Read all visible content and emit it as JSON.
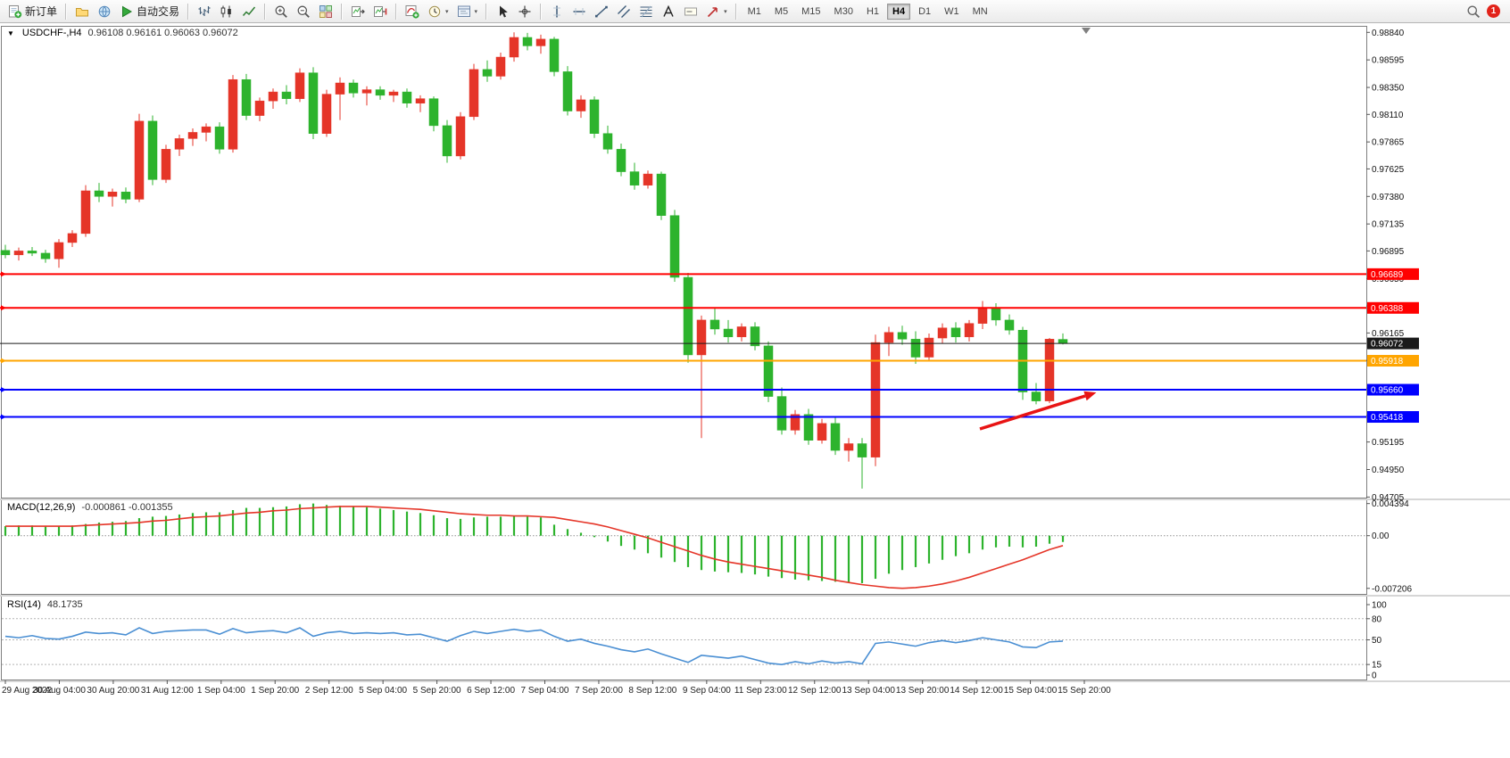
{
  "toolbar": {
    "groups": [
      {
        "items": [
          {
            "name": "new-order",
            "icon": "new-order",
            "label": "新订单"
          }
        ]
      },
      {
        "items": [
          {
            "name": "charts-profile",
            "icon": "folder"
          },
          {
            "name": "market-watch",
            "icon": "globe"
          },
          {
            "name": "auto-trading",
            "icon": "play",
            "label": "自动交易"
          }
        ]
      },
      {
        "items": [
          {
            "name": "bar-chart-mode",
            "icon": "bars"
          },
          {
            "name": "candlestick-mode",
            "icon": "candles"
          },
          {
            "name": "line-chart-mode",
            "icon": "linechart"
          }
        ]
      },
      {
        "items": [
          {
            "name": "zoom-in",
            "icon": "zoom-in"
          },
          {
            "name": "zoom-out",
            "icon": "zoom-out"
          },
          {
            "name": "tile-windows",
            "icon": "tiles"
          }
        ]
      },
      {
        "items": [
          {
            "name": "chart-autoscroll",
            "icon": "autoscroll"
          },
          {
            "name": "chart-shift",
            "icon": "shift"
          }
        ]
      },
      {
        "items": [
          {
            "name": "indicators-list",
            "icon": "indicators"
          },
          {
            "name": "periods",
            "icon": "clock",
            "dropdown": true
          },
          {
            "name": "templates",
            "icon": "template",
            "dropdown": true
          }
        ]
      },
      {
        "items": [
          {
            "name": "cursor",
            "icon": "cursor"
          },
          {
            "name": "crosshair",
            "icon": "crosshair"
          }
        ]
      },
      {
        "items": [
          {
            "name": "vertical-line",
            "icon": "vline"
          },
          {
            "name": "horizontal-line",
            "icon": "hline"
          },
          {
            "name": "trendline",
            "icon": "trend"
          },
          {
            "name": "equidistant-channel",
            "icon": "channel"
          },
          {
            "name": "fibonacci-retracement",
            "icon": "fibo"
          },
          {
            "name": "text",
            "icon": "text-a"
          },
          {
            "name": "text-label",
            "icon": "label"
          },
          {
            "name": "arrows",
            "icon": "arrow-obj",
            "dropdown": true
          }
        ]
      },
      {
        "timeframes": [
          "M1",
          "M5",
          "M15",
          "M30",
          "H1",
          "H4",
          "D1",
          "W1",
          "MN"
        ],
        "active": "H4"
      }
    ],
    "right": [
      {
        "name": "search",
        "icon": "magnifier"
      },
      {
        "name": "notifications",
        "badge": "1"
      }
    ]
  },
  "chart_header": {
    "oneclick_arrow": "▼",
    "symbol_period": "USDCHF-,H4",
    "ohlc": "0.96108 0.96161 0.96063 0.96072"
  },
  "indicators": {
    "macd": {
      "label": "MACD(12,26,9)",
      "values": "-0.000861 -0.001355"
    },
    "rsi": {
      "label": "RSI(14)",
      "value": "48.1735"
    }
  },
  "chart_data": {
    "type": "candlestick",
    "symbol": "USDCHF",
    "period": "H4",
    "price_range": [
      0.947,
      0.9889
    ],
    "colors": {
      "up": "#e53528",
      "down": "#2db32d",
      "macd_hist": "#2db32d",
      "macd_signal": "#e53528",
      "rsi": "#4a8fd3"
    },
    "price_scale_labels": [
      "0.98840",
      "0.98595",
      "0.98350",
      "0.98110",
      "0.97865",
      "0.97625",
      "0.97380",
      "0.97135",
      "0.96895",
      "0.96650",
      "0.96405",
      "0.96165",
      "0.95920",
      "0.95675",
      "0.95430",
      "0.95195",
      "0.94950",
      "0.94705"
    ],
    "time_labels": [
      "29 Aug 2022",
      "30 Aug 04:00",
      "30 Aug 20:00",
      "31 Aug 12:00",
      "1 Sep 04:00",
      "1 Sep 20:00",
      "2 Sep 12:00",
      "5 Sep 04:00",
      "5 Sep 20:00",
      "6 Sep 12:00",
      "7 Sep 04:00",
      "7 Sep 20:00",
      "8 Sep 12:00",
      "9 Sep 04:00",
      "11 Sep 23:00",
      "12 Sep 12:00",
      "13 Sep 04:00",
      "13 Sep 20:00",
      "14 Sep 12:00",
      "15 Sep 04:00",
      "15 Sep 20:00"
    ],
    "levels": [
      {
        "price": "0.96689",
        "value": 0.96689,
        "color": "#ff0000",
        "kind": "resistance"
      },
      {
        "price": "0.96388",
        "value": 0.96388,
        "color": "#ff0000",
        "kind": "resistance"
      },
      {
        "price": "0.96072",
        "value": 0.96072,
        "color": "#1a1a1a",
        "kind": "current"
      },
      {
        "price": "0.95918",
        "value": 0.95918,
        "color": "#ffa500",
        "kind": "support"
      },
      {
        "price": "0.95660",
        "value": 0.9566,
        "color": "#0000ff",
        "kind": "support"
      },
      {
        "price": "0.95418",
        "value": 0.95418,
        "color": "#0000ff",
        "kind": "support"
      }
    ],
    "candles": [
      [
        0.969,
        0.9695,
        0.9683,
        0.9686
      ],
      [
        0.9686,
        0.96925,
        0.9681,
        0.96895
      ],
      [
        0.96895,
        0.9693,
        0.9685,
        0.96875
      ],
      [
        0.96875,
        0.96905,
        0.9679,
        0.96825
      ],
      [
        0.96825,
        0.97,
        0.96745,
        0.9697
      ],
      [
        0.9697,
        0.9708,
        0.9693,
        0.9705
      ],
      [
        0.9705,
        0.9748,
        0.9702,
        0.9743
      ],
      [
        0.9743,
        0.975,
        0.9733,
        0.9738
      ],
      [
        0.9738,
        0.9745,
        0.9729,
        0.9742
      ],
      [
        0.9742,
        0.9746,
        0.9732,
        0.97355
      ],
      [
        0.97355,
        0.98115,
        0.9733,
        0.9805
      ],
      [
        0.9805,
        0.981,
        0.9748,
        0.9753
      ],
      [
        0.9753,
        0.9784,
        0.975,
        0.978
      ],
      [
        0.978,
        0.9793,
        0.9774,
        0.97895
      ],
      [
        0.97895,
        0.97985,
        0.9783,
        0.9795
      ],
      [
        0.9795,
        0.9803,
        0.9787,
        0.98
      ],
      [
        0.98,
        0.9804,
        0.9776,
        0.978
      ],
      [
        0.978,
        0.9846,
        0.9777,
        0.9842
      ],
      [
        0.9842,
        0.9847,
        0.9806,
        0.981
      ],
      [
        0.981,
        0.9826,
        0.9805,
        0.9823
      ],
      [
        0.9823,
        0.9834,
        0.9816,
        0.9831
      ],
      [
        0.9831,
        0.9837,
        0.982,
        0.9825
      ],
      [
        0.9825,
        0.9852,
        0.9822,
        0.9848
      ],
      [
        0.9848,
        0.9853,
        0.9789,
        0.9794
      ],
      [
        0.9794,
        0.9833,
        0.9791,
        0.9829
      ],
      [
        0.9829,
        0.9844,
        0.9806,
        0.9839
      ],
      [
        0.9839,
        0.9842,
        0.9826,
        0.983
      ],
      [
        0.983,
        0.9836,
        0.9819,
        0.9833
      ],
      [
        0.9833,
        0.9836,
        0.9824,
        0.9828
      ],
      [
        0.9828,
        0.9833,
        0.9822,
        0.9831
      ],
      [
        0.9831,
        0.9834,
        0.9817,
        0.9821
      ],
      [
        0.9821,
        0.9828,
        0.9813,
        0.9825
      ],
      [
        0.9825,
        0.9827,
        0.9796,
        0.9801
      ],
      [
        0.9801,
        0.9806,
        0.9768,
        0.9774
      ],
      [
        0.9774,
        0.9813,
        0.9771,
        0.9809
      ],
      [
        0.9809,
        0.9856,
        0.9806,
        0.9851
      ],
      [
        0.9851,
        0.9859,
        0.984,
        0.9845
      ],
      [
        0.9845,
        0.9866,
        0.9842,
        0.9862
      ],
      [
        0.9862,
        0.9884,
        0.9858,
        0.98795
      ],
      [
        0.98795,
        0.98835,
        0.9868,
        0.9872
      ],
      [
        0.9872,
        0.9882,
        0.9865,
        0.9878
      ],
      [
        0.9878,
        0.988,
        0.9845,
        0.9849
      ],
      [
        0.9849,
        0.9854,
        0.981,
        0.9814
      ],
      [
        0.9814,
        0.9828,
        0.9808,
        0.9824
      ],
      [
        0.9824,
        0.9827,
        0.979,
        0.9794
      ],
      [
        0.9794,
        0.9801,
        0.9776,
        0.978
      ],
      [
        0.978,
        0.9785,
        0.9756,
        0.976
      ],
      [
        0.976,
        0.9768,
        0.9744,
        0.9748
      ],
      [
        0.9748,
        0.9761,
        0.9745,
        0.9758
      ],
      [
        0.9758,
        0.976,
        0.9717,
        0.9721
      ],
      [
        0.9721,
        0.9726,
        0.9662,
        0.9666
      ],
      [
        0.9666,
        0.967,
        0.959,
        0.9597
      ],
      [
        0.9597,
        0.9632,
        0.9523,
        0.9628
      ],
      [
        0.9628,
        0.9639,
        0.9615,
        0.962
      ],
      [
        0.962,
        0.9628,
        0.9608,
        0.9613
      ],
      [
        0.9613,
        0.9625,
        0.9609,
        0.9622
      ],
      [
        0.9622,
        0.9626,
        0.9601,
        0.9605
      ],
      [
        0.9605,
        0.9609,
        0.9555,
        0.956
      ],
      [
        0.956,
        0.9568,
        0.9526,
        0.953
      ],
      [
        0.953,
        0.9548,
        0.9526,
        0.9544
      ],
      [
        0.9544,
        0.9549,
        0.9517,
        0.9521
      ],
      [
        0.9521,
        0.954,
        0.9518,
        0.9536
      ],
      [
        0.9536,
        0.9541,
        0.9508,
        0.9512
      ],
      [
        0.9512,
        0.9523,
        0.9502,
        0.9518
      ],
      [
        0.9518,
        0.9523,
        0.9478,
        0.9506
      ],
      [
        0.9506,
        0.9615,
        0.9498,
        0.9608
      ],
      [
        0.9608,
        0.9622,
        0.9596,
        0.9617
      ],
      [
        0.9617,
        0.9623,
        0.9606,
        0.9611
      ],
      [
        0.9611,
        0.9618,
        0.9589,
        0.9595
      ],
      [
        0.9595,
        0.9616,
        0.9591,
        0.9612
      ],
      [
        0.9612,
        0.9625,
        0.9607,
        0.9621
      ],
      [
        0.9621,
        0.9626,
        0.9608,
        0.9613
      ],
      [
        0.9613,
        0.9628,
        0.9609,
        0.9625
      ],
      [
        0.9625,
        0.9645,
        0.962,
        0.9639
      ],
      [
        0.9639,
        0.9643,
        0.9623,
        0.9628
      ],
      [
        0.9628,
        0.9633,
        0.9615,
        0.9619
      ],
      [
        0.9619,
        0.9622,
        0.9557,
        0.9564
      ],
      [
        0.9564,
        0.9572,
        0.9553,
        0.9556
      ],
      [
        0.9556,
        0.9612,
        0.9554,
        0.9611
      ],
      [
        0.96108,
        0.96161,
        0.96063,
        0.96072
      ]
    ],
    "macd": {
      "scale_labels": [
        "0.004394",
        "0.00",
        "-0.007206"
      ],
      "scale_values": [
        0.004394,
        0,
        -0.007206
      ],
      "histogram": [
        0.0013,
        0.0014,
        0.0014,
        0.0013,
        0.0013,
        0.0014,
        0.0016,
        0.0018,
        0.0019,
        0.002,
        0.0024,
        0.0026,
        0.0027,
        0.0029,
        0.0031,
        0.0032,
        0.0032,
        0.0035,
        0.0038,
        0.0038,
        0.0039,
        0.004,
        0.0043,
        0.0044,
        0.0042,
        0.0041,
        0.004,
        0.0039,
        0.0037,
        0.0035,
        0.0033,
        0.0031,
        0.0028,
        0.0024,
        0.0023,
        0.0025,
        0.0026,
        0.0026,
        0.0027,
        0.0026,
        0.0025,
        0.0015,
        0.0009,
        0.0004,
        -0.0002,
        -0.0008,
        -0.0014,
        -0.0019,
        -0.0024,
        -0.003,
        -0.0036,
        -0.0043,
        -0.0047,
        -0.0049,
        -0.005,
        -0.0051,
        -0.0053,
        -0.0056,
        -0.0058,
        -0.006,
        -0.0061,
        -0.0062,
        -0.0063,
        -0.0064,
        -0.0065,
        -0.0059,
        -0.0052,
        -0.0047,
        -0.0043,
        -0.0038,
        -0.0033,
        -0.0028,
        -0.0024,
        -0.0019,
        -0.0016,
        -0.0015,
        -0.0016,
        -0.0015,
        -0.0011,
        -0.000861
      ],
      "signal": [
        0.0013,
        0.0013,
        0.0013,
        0.0013,
        0.0013,
        0.0013,
        0.0014,
        0.0015,
        0.0016,
        0.0017,
        0.0018,
        0.002,
        0.0021,
        0.0023,
        0.0025,
        0.0026,
        0.0027,
        0.0029,
        0.0031,
        0.0032,
        0.0034,
        0.0035,
        0.0037,
        0.0038,
        0.0039,
        0.004,
        0.004,
        0.004,
        0.0039,
        0.0038,
        0.0037,
        0.0036,
        0.0034,
        0.0032,
        0.003,
        0.0029,
        0.0028,
        0.0028,
        0.0027,
        0.0027,
        0.0026,
        0.0025,
        0.0022,
        0.0019,
        0.0016,
        0.0012,
        0.0007,
        0.0002,
        -0.0003,
        -0.0009,
        -0.0015,
        -0.0021,
        -0.0027,
        -0.0032,
        -0.0036,
        -0.0039,
        -0.0042,
        -0.0045,
        -0.0048,
        -0.0051,
        -0.0054,
        -0.0057,
        -0.0061,
        -0.0064,
        -0.0067,
        -0.0069,
        -0.0071,
        -0.0072,
        -0.0071,
        -0.0069,
        -0.0066,
        -0.0062,
        -0.0057,
        -0.0051,
        -0.0045,
        -0.0039,
        -0.0033,
        -0.0026,
        -0.0019,
        -0.001355
      ]
    },
    "rsi": {
      "scale_labels": [
        "100",
        "80",
        "50",
        "15",
        "0"
      ],
      "scale_values": [
        100,
        80,
        50,
        15,
        0
      ],
      "levels": [
        80,
        50,
        15
      ],
      "series": [
        55,
        53,
        56,
        52,
        51,
        55,
        61,
        59,
        60,
        57,
        67,
        59,
        62,
        63,
        64,
        64,
        58,
        66,
        60,
        62,
        63,
        60,
        67,
        55,
        60,
        62,
        59,
        60,
        59,
        60,
        57,
        58,
        53,
        48,
        56,
        62,
        59,
        62,
        65,
        62,
        64,
        55,
        48,
        51,
        45,
        41,
        36,
        33,
        37,
        30,
        24,
        18,
        28,
        26,
        24,
        27,
        22,
        17,
        15,
        19,
        16,
        20,
        17,
        19,
        16,
        45,
        47,
        44,
        41,
        46,
        49,
        46,
        49,
        53,
        50,
        47,
        40,
        39,
        47,
        48.17
      ]
    },
    "annotation_arrow": {
      "from": [
        1098,
        455
      ],
      "to": [
        1216,
        418
      ],
      "color": "#e81414"
    }
  }
}
